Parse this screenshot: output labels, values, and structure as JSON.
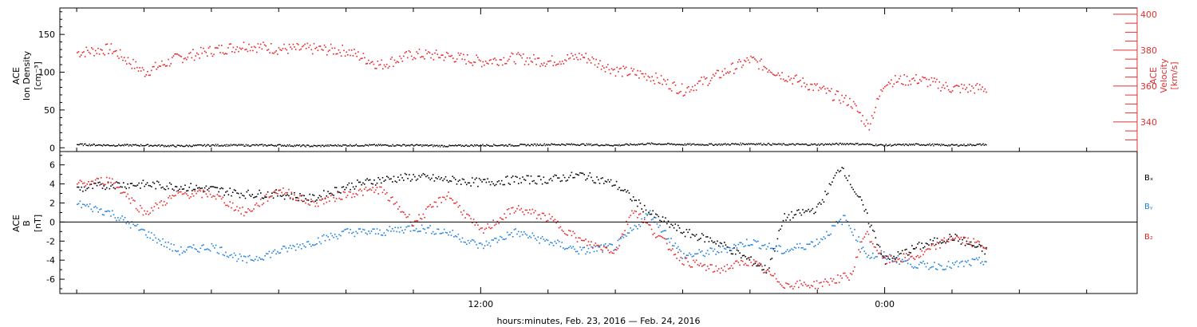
{
  "colors": {
    "black": "#000000",
    "red": "#e8262a",
    "blue": "#1f7fe0",
    "axis_red": "#e03030"
  },
  "xaxis": {
    "label": "hours:minutes, Feb. 23, 2016 — Feb. 24, 2016",
    "major_ticks": [
      {
        "hour": 12,
        "label": "12:00"
      },
      {
        "hour": 24,
        "label": "0:00"
      }
    ],
    "range_hours": [
      -0.5,
      31.5
    ],
    "minor_tick_every_hours": 2
  },
  "top_panel": {
    "left_label_lines": [
      "ACE",
      "Ion Density",
      "[cm⁻³]"
    ],
    "right_label_lines": [
      "ACE",
      "Velocity",
      "[km/s]"
    ],
    "left_ticks": [
      "0",
      "50",
      "100",
      "150"
    ],
    "right_ticks": [
      "340",
      "360",
      "380",
      "400"
    ],
    "left_range": [
      -5,
      185
    ],
    "right_range": [
      323.5,
      403.5
    ]
  },
  "bottom_panel": {
    "left_label_lines": [
      "ACE",
      "B",
      "[nT]"
    ],
    "ticks": [
      "6",
      "4",
      "2",
      "0",
      "-2",
      "-4",
      "-6"
    ],
    "range": [
      -7.5,
      7.4
    ],
    "legend": [
      {
        "name": "Bₓ",
        "color": "#000000"
      },
      {
        "name": "Bᵧ",
        "color": "#1f7fe0"
      },
      {
        "name": "B₂",
        "color": "#e8262a"
      }
    ]
  },
  "chart_data": [
    {
      "type": "scatter",
      "title": "",
      "xlabel": "hours:minutes, Feb. 23, 2016 — Feb. 24, 2016",
      "ylabel": "ACE Ion Density [cm⁻³]",
      "y2label": "ACE Velocity [km/s]",
      "ylim": [
        -5,
        185
      ],
      "y2lim": [
        323.5,
        403.5
      ],
      "series": [
        {
          "name": "Ion Density",
          "axis": "left",
          "x_hours": [
            0,
            1,
            2,
            3,
            4,
            5,
            6,
            7,
            8,
            9,
            10,
            11,
            12,
            13,
            14,
            15,
            16,
            17,
            18,
            19,
            20,
            21,
            22,
            23,
            24,
            25,
            26,
            27
          ],
          "values": [
            5,
            4,
            4,
            3,
            4,
            4,
            4,
            3,
            4,
            4,
            4,
            3,
            4,
            4,
            5,
            5,
            4,
            6,
            5,
            5,
            6,
            5,
            5,
            6,
            4,
            5,
            4,
            5
          ]
        },
        {
          "name": "Velocity",
          "axis": "right",
          "x_hours": [
            0,
            1,
            2,
            3,
            4,
            5,
            6,
            7,
            8,
            9,
            10,
            11,
            12,
            13,
            14,
            15,
            16,
            17,
            18,
            19,
            20,
            21,
            22,
            23,
            23.5,
            24,
            25,
            26,
            27
          ],
          "values": [
            379,
            381,
            368,
            376,
            380,
            383,
            381,
            381,
            380,
            372,
            378,
            377,
            374,
            376,
            374,
            377,
            369,
            366,
            358,
            366,
            375,
            366,
            359,
            351,
            338,
            363,
            364,
            359,
            359
          ]
        }
      ]
    },
    {
      "type": "scatter",
      "title": "",
      "xlabel": "hours:minutes, Feb. 23, 2016 — Feb. 24, 2016",
      "ylabel": "ACE B [nT]",
      "ylim": [
        -7.5,
        7.4
      ],
      "series": [
        {
          "name": "Bx",
          "x_hours": [
            0,
            1,
            2,
            3,
            4,
            5,
            6,
            7,
            8,
            9,
            10,
            11,
            12,
            13,
            14,
            15,
            16,
            17,
            18,
            19,
            20,
            20.5,
            21,
            22,
            22.7,
            23.3,
            24,
            25,
            26,
            27
          ],
          "values": [
            3.5,
            4,
            4,
            3.8,
            3.5,
            3,
            3,
            2.5,
            3.8,
            4.5,
            4.8,
            4.5,
            4.2,
            4.5,
            4.5,
            5,
            4,
            1,
            -1,
            -2,
            -4,
            -5,
            0.5,
            1.5,
            6,
            2,
            -4,
            -2.5,
            -1.5,
            -3
          ]
        },
        {
          "name": "By",
          "x_hours": [
            0,
            1,
            2,
            3,
            4,
            5,
            6,
            7,
            8,
            9,
            10,
            11,
            12,
            13,
            14,
            15,
            16,
            17,
            18,
            19,
            20,
            21,
            22,
            22.8,
            23.5,
            24,
            25,
            26,
            27
          ],
          "values": [
            2,
            1,
            -1,
            -3,
            -2.5,
            -4,
            -3,
            -2,
            -1,
            -1,
            -0.5,
            -1,
            -2.5,
            -1,
            -2,
            -3,
            -2.5,
            1,
            -3.5,
            -3,
            -2,
            -3,
            -2,
            0.5,
            -3.5,
            -3.5,
            -4.5,
            -4.5,
            -4
          ]
        },
        {
          "name": "Bz",
          "x_hours": [
            0,
            1,
            2,
            3,
            4,
            5,
            6,
            7,
            8,
            9,
            10,
            11,
            12,
            13,
            14,
            15,
            16,
            16.5,
            17,
            18,
            19,
            20,
            21,
            22,
            23,
            23.4,
            24,
            25,
            26,
            27
          ],
          "values": [
            4,
            4.5,
            1,
            3,
            3,
            1,
            3.5,
            2,
            3,
            3.5,
            0,
            3,
            -1,
            1.5,
            0.5,
            -2,
            -3,
            1.5,
            -0.5,
            -4,
            -5,
            -4,
            -6.5,
            -6.5,
            -5.5,
            -1,
            -4,
            -3.5,
            -1.5,
            -2.5
          ]
        }
      ]
    }
  ]
}
